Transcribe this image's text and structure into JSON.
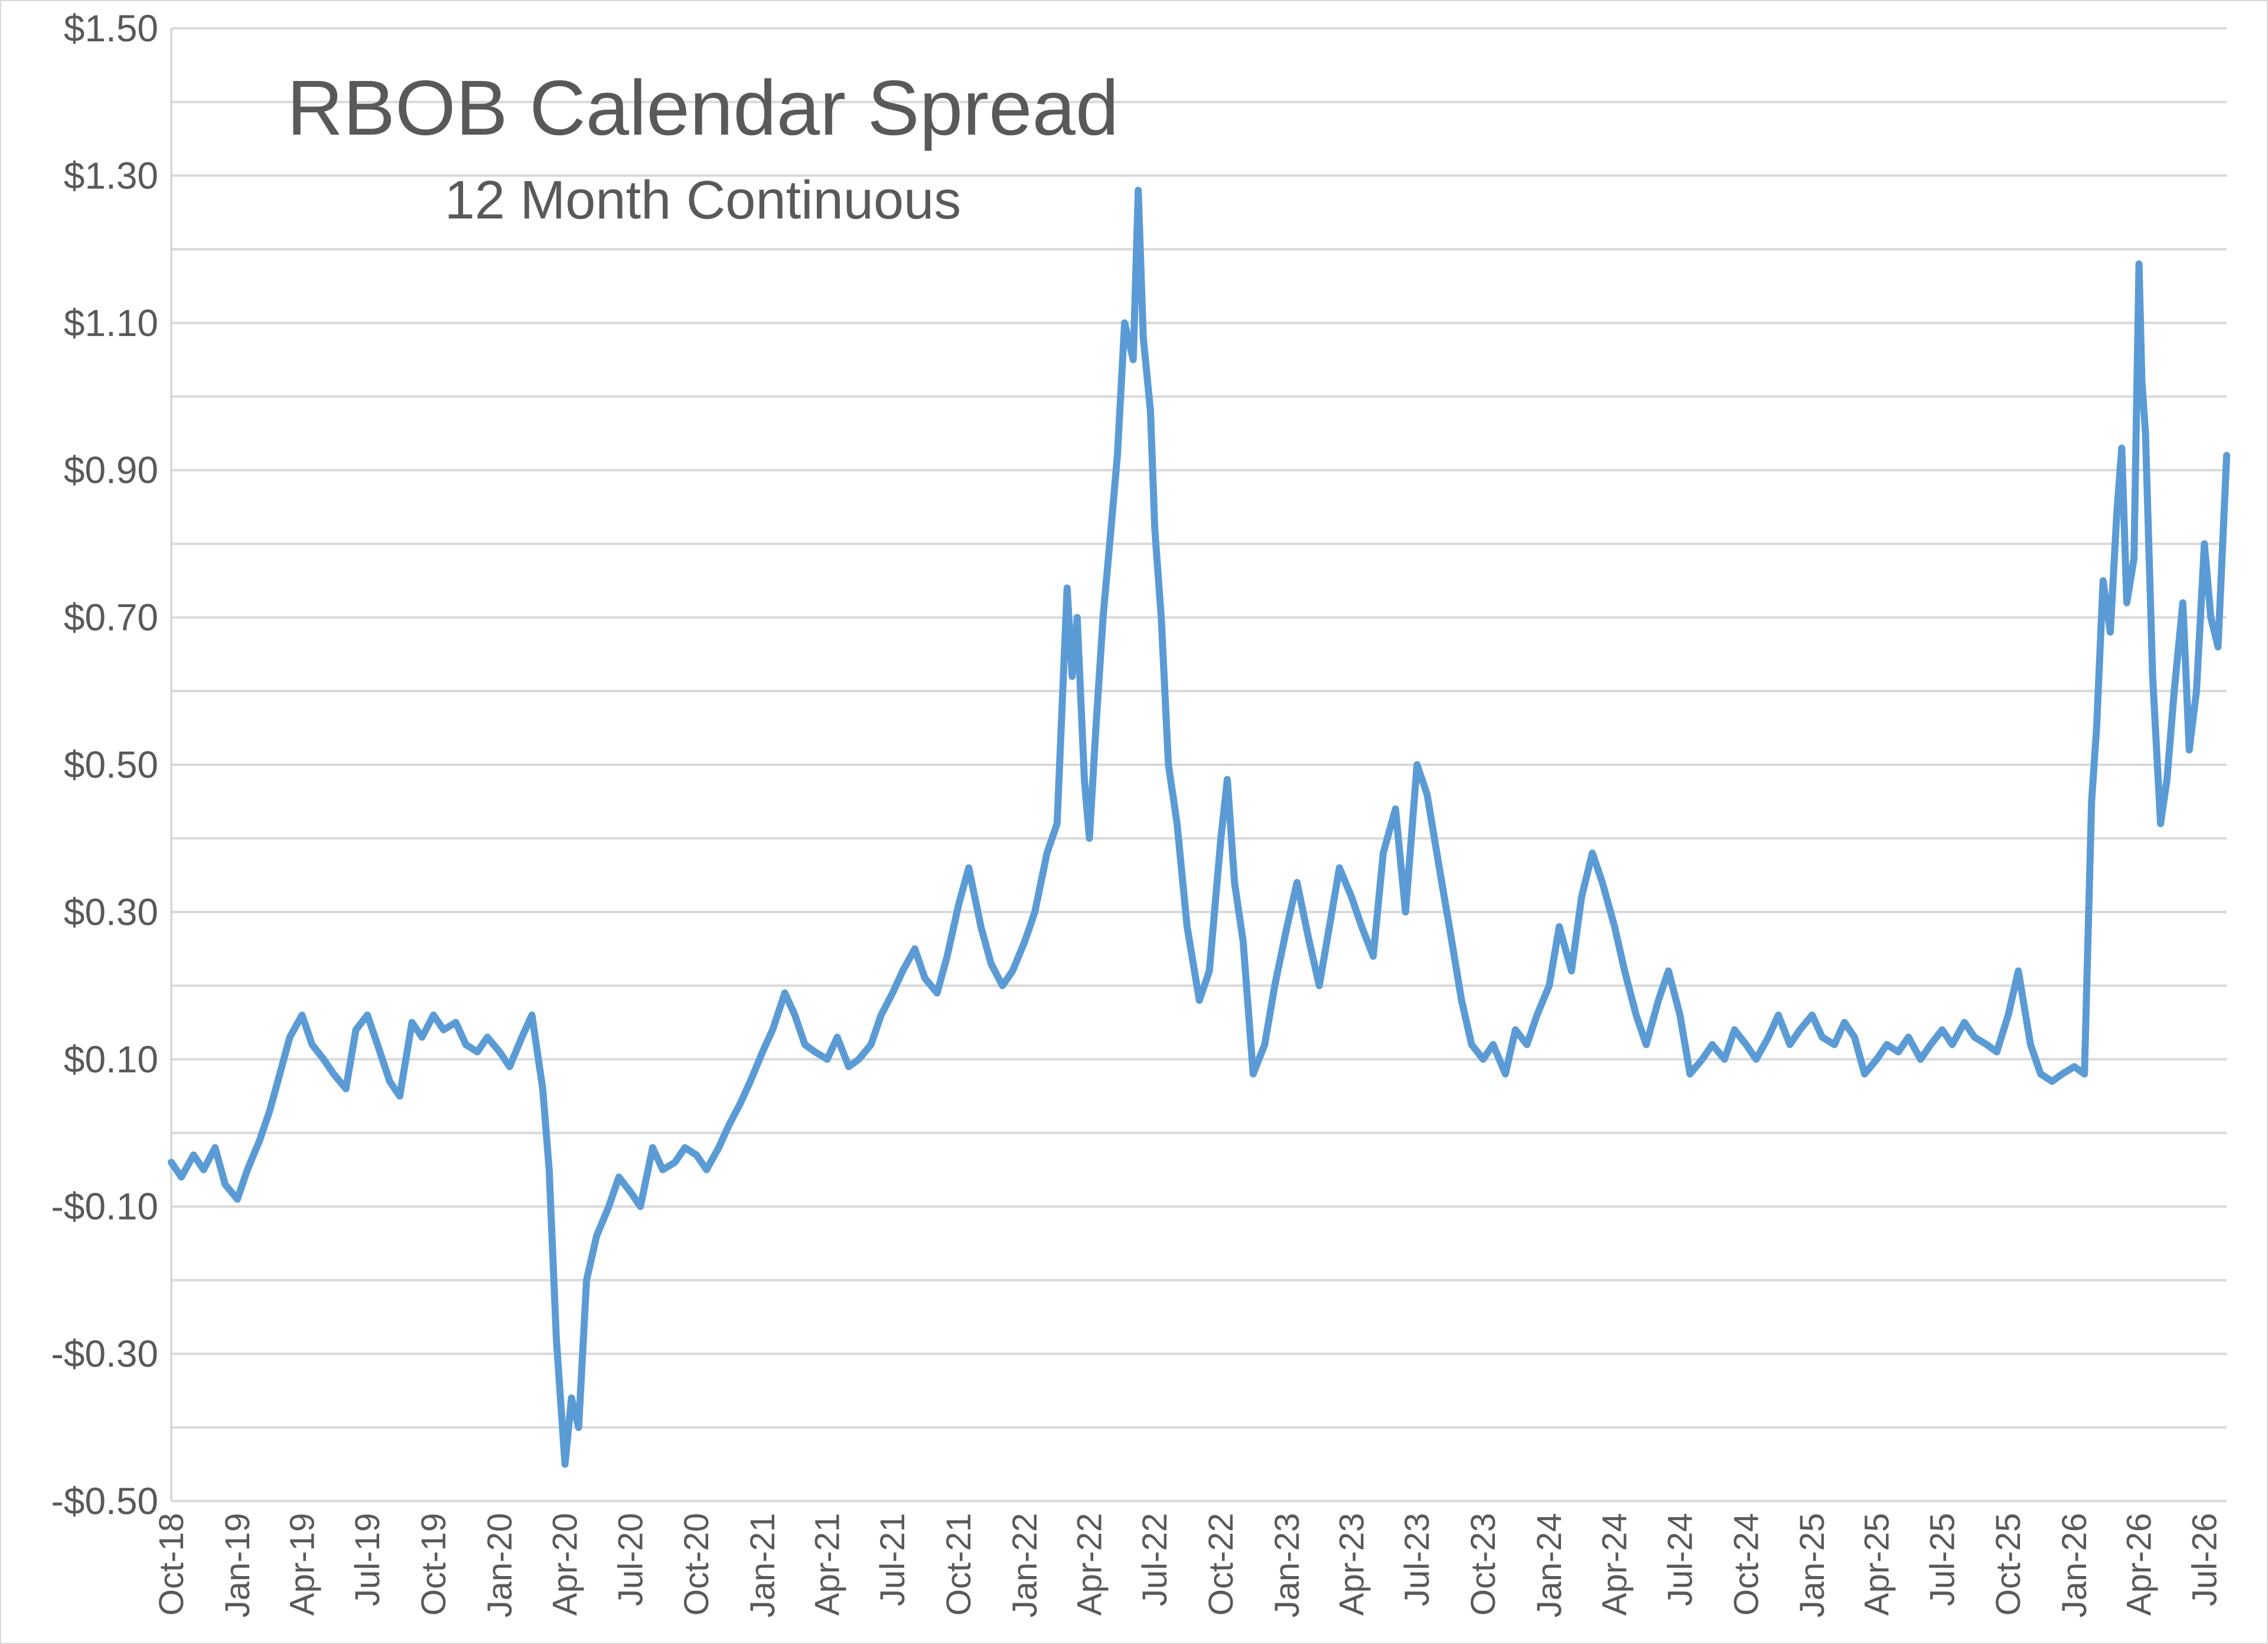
{
  "chart_data": {
    "type": "line",
    "title": "RBOB Calendar Spread",
    "subtitle": "12 Month Continuous",
    "xlabel": "",
    "ylabel": "",
    "ylim": [
      -0.5,
      1.5
    ],
    "ytick_values": [
      1.5,
      1.3,
      1.1,
      0.9,
      0.7,
      0.5,
      0.3,
      0.1,
      -0.1,
      -0.3,
      -0.5
    ],
    "ytick_labels": [
      "$1.50",
      "$1.30",
      "$1.10",
      "$0.90",
      "$0.70",
      "$0.50",
      "$0.30",
      "$0.10",
      "-$0.10",
      "-$0.30",
      "-$0.50"
    ],
    "minor_gridlines": [
      1.4,
      1.2,
      1.0,
      0.8,
      0.6,
      0.4,
      0.2,
      0.0,
      -0.2,
      -0.4
    ],
    "xlim": [
      "2018-10",
      "2026-08"
    ],
    "xtick_labels": [
      "Oct-18",
      "Jan-19",
      "Apr-19",
      "Jul-19",
      "Oct-19",
      "Jan-20",
      "Apr-20",
      "Jul-20",
      "Oct-20",
      "Jan-21",
      "Apr-21",
      "Jul-21",
      "Oct-21",
      "Jan-22",
      "Apr-22",
      "Jul-22",
      "Oct-22",
      "Jan-23",
      "Apr-23",
      "Jul-23",
      "Oct-23",
      "Jan-24",
      "Apr-24",
      "Jul-24",
      "Oct-24",
      "Jan-25",
      "Apr-25",
      "Jul-25",
      "Oct-25",
      "Jan-26",
      "Apr-26",
      "Jul-26"
    ],
    "grid": true,
    "legend": "none",
    "series_color": "#5B9BD5",
    "series": [
      {
        "x": [
          "2018-10-01",
          "2018-10-15",
          "2018-11-01",
          "2018-11-15",
          "2018-12-01",
          "2018-12-15",
          "2019-01-01",
          "2019-01-15",
          "2019-02-01",
          "2019-02-15",
          "2019-03-01",
          "2019-03-15",
          "2019-04-01",
          "2019-04-15",
          "2019-05-01",
          "2019-05-15",
          "2019-06-01",
          "2019-06-15",
          "2019-07-01",
          "2019-07-15",
          "2019-08-01",
          "2019-08-15",
          "2019-09-01",
          "2019-09-15",
          "2019-10-01",
          "2019-10-15",
          "2019-11-01",
          "2019-11-15",
          "2019-12-01",
          "2019-12-15",
          "2020-01-01",
          "2020-01-15",
          "2020-02-01",
          "2020-02-15",
          "2020-03-01",
          "2020-03-10",
          "2020-03-20",
          "2020-04-01",
          "2020-04-10",
          "2020-04-20",
          "2020-05-01",
          "2020-05-15",
          "2020-06-01",
          "2020-06-15",
          "2020-07-01",
          "2020-07-15",
          "2020-08-01",
          "2020-08-15",
          "2020-09-01",
          "2020-09-15",
          "2020-10-01",
          "2020-10-15",
          "2020-11-01",
          "2020-11-15",
          "2020-12-01",
          "2020-12-15",
          "2021-01-01",
          "2021-01-15",
          "2021-02-01",
          "2021-02-15",
          "2021-03-01",
          "2021-03-15",
          "2021-04-01",
          "2021-04-15",
          "2021-05-01",
          "2021-05-15",
          "2021-06-01",
          "2021-06-15",
          "2021-07-01",
          "2021-07-15",
          "2021-08-01",
          "2021-08-15",
          "2021-09-01",
          "2021-09-15",
          "2021-10-01",
          "2021-10-15",
          "2021-11-01",
          "2021-11-15",
          "2021-12-01",
          "2021-12-15",
          "2022-01-01",
          "2022-01-15",
          "2022-02-01",
          "2022-02-15",
          "2022-03-01",
          "2022-03-08",
          "2022-03-15",
          "2022-03-25",
          "2022-04-01",
          "2022-04-10",
          "2022-04-20",
          "2022-05-01",
          "2022-05-10",
          "2022-05-20",
          "2022-06-01",
          "2022-06-08",
          "2022-06-15",
          "2022-06-25",
          "2022-07-01",
          "2022-07-10",
          "2022-07-20",
          "2022-08-01",
          "2022-08-15",
          "2022-09-01",
          "2022-09-15",
          "2022-10-01",
          "2022-10-10",
          "2022-10-20",
          "2022-11-01",
          "2022-11-15",
          "2022-12-01",
          "2022-12-15",
          "2023-01-01",
          "2023-01-15",
          "2023-02-01",
          "2023-02-15",
          "2023-03-01",
          "2023-03-15",
          "2023-04-01",
          "2023-04-15",
          "2023-05-01",
          "2023-05-15",
          "2023-06-01",
          "2023-06-15",
          "2023-07-01",
          "2023-07-15",
          "2023-08-01",
          "2023-08-15",
          "2023-09-01",
          "2023-09-15",
          "2023-10-01",
          "2023-10-15",
          "2023-11-01",
          "2023-11-15",
          "2023-12-01",
          "2023-12-15",
          "2024-01-01",
          "2024-01-15",
          "2024-02-01",
          "2024-02-15",
          "2024-03-01",
          "2024-03-15",
          "2024-04-01",
          "2024-04-15",
          "2024-05-01",
          "2024-05-15",
          "2024-06-01",
          "2024-06-15",
          "2024-07-01",
          "2024-07-15",
          "2024-08-01",
          "2024-08-15",
          "2024-09-01",
          "2024-09-15",
          "2024-10-01",
          "2024-10-15",
          "2024-11-01",
          "2024-11-15",
          "2024-12-01",
          "2024-12-15",
          "2025-01-01",
          "2025-01-15",
          "2025-02-01",
          "2025-02-15",
          "2025-03-01",
          "2025-03-15",
          "2025-04-01",
          "2025-04-15",
          "2025-05-01",
          "2025-05-15",
          "2025-06-01",
          "2025-06-15",
          "2025-07-01",
          "2025-07-15",
          "2025-08-01",
          "2025-08-15",
          "2025-09-01",
          "2025-09-15",
          "2025-10-01",
          "2025-10-15",
          "2025-11-01",
          "2025-11-15",
          "2025-12-01",
          "2025-12-15",
          "2026-01-01",
          "2026-01-15",
          "2026-01-25",
          "2026-02-01",
          "2026-02-10",
          "2026-02-20",
          "2026-03-01",
          "2026-03-08",
          "2026-03-15",
          "2026-03-25",
          "2026-04-01",
          "2026-04-05",
          "2026-04-10",
          "2026-04-20",
          "2026-05-01",
          "2026-05-10",
          "2026-05-20",
          "2026-06-01",
          "2026-06-10",
          "2026-06-20",
          "2026-07-01",
          "2026-07-10",
          "2026-07-20",
          "2026-08-01"
        ],
        "y": [
          -0.04,
          -0.06,
          -0.03,
          -0.05,
          -0.02,
          -0.07,
          -0.09,
          -0.05,
          -0.01,
          0.03,
          0.08,
          0.13,
          0.16,
          0.12,
          0.1,
          0.08,
          0.06,
          0.14,
          0.16,
          0.12,
          0.07,
          0.05,
          0.15,
          0.13,
          0.16,
          0.14,
          0.15,
          0.12,
          0.11,
          0.13,
          0.11,
          0.09,
          0.13,
          0.16,
          0.06,
          -0.05,
          -0.28,
          -0.45,
          -0.36,
          -0.4,
          -0.2,
          -0.14,
          -0.1,
          -0.06,
          -0.08,
          -0.1,
          -0.02,
          -0.05,
          -0.04,
          -0.02,
          -0.03,
          -0.05,
          -0.02,
          0.01,
          0.04,
          0.07,
          0.11,
          0.14,
          0.19,
          0.16,
          0.12,
          0.11,
          0.1,
          0.13,
          0.09,
          0.1,
          0.12,
          0.16,
          0.19,
          0.22,
          0.25,
          0.21,
          0.19,
          0.24,
          0.31,
          0.36,
          0.28,
          0.23,
          0.2,
          0.22,
          0.26,
          0.3,
          0.38,
          0.42,
          0.74,
          0.62,
          0.7,
          0.48,
          0.4,
          0.55,
          0.7,
          0.82,
          0.92,
          1.1,
          1.05,
          1.28,
          1.08,
          0.98,
          0.82,
          0.7,
          0.5,
          0.42,
          0.28,
          0.18,
          0.22,
          0.4,
          0.48,
          0.34,
          0.26,
          0.08,
          0.12,
          0.2,
          0.28,
          0.34,
          0.26,
          0.2,
          0.28,
          0.36,
          0.32,
          0.28,
          0.24,
          0.38,
          0.44,
          0.3,
          0.5,
          0.46,
          0.36,
          0.28,
          0.18,
          0.12,
          0.1,
          0.12,
          0.08,
          0.14,
          0.12,
          0.16,
          0.2,
          0.28,
          0.22,
          0.32,
          0.38,
          0.34,
          0.28,
          0.22,
          0.16,
          0.12,
          0.18,
          0.22,
          0.16,
          0.08,
          0.1,
          0.12,
          0.1,
          0.14,
          0.12,
          0.1,
          0.13,
          0.16,
          0.12,
          0.14,
          0.16,
          0.13,
          0.12,
          0.15,
          0.13,
          0.08,
          0.1,
          0.12,
          0.11,
          0.13,
          0.1,
          0.12,
          0.14,
          0.12,
          0.15,
          0.13,
          0.12,
          0.11,
          0.16,
          0.22,
          0.12,
          0.08,
          0.07,
          0.08,
          0.09,
          0.08,
          0.45,
          0.55,
          0.75,
          0.68,
          0.84,
          0.93,
          0.72,
          0.78,
          1.18,
          1.02,
          0.95,
          0.62,
          0.42,
          0.48,
          0.6,
          0.72,
          0.52,
          0.6,
          0.8,
          0.7,
          0.66,
          0.92
        ]
      }
    ]
  }
}
